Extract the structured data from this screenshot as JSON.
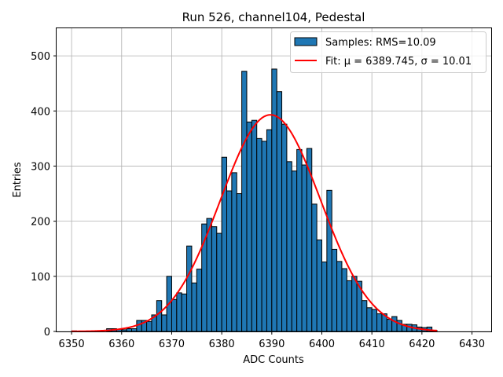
{
  "chart_data": {
    "type": "bar",
    "title": "Run 526, channel104, Pedestal",
    "xlabel": "ADC Counts",
    "ylabel": "Entries",
    "xlim": [
      6347,
      6434
    ],
    "ylim": [
      0,
      550
    ],
    "xticks": [
      6350,
      6360,
      6370,
      6380,
      6390,
      6400,
      6410,
      6420,
      6430
    ],
    "yticks": [
      0,
      100,
      200,
      300,
      400,
      500
    ],
    "grid": true,
    "legend_position": "top-right",
    "bin_width": 1,
    "colors": {
      "bar_fill": "#1f77b4",
      "bar_edge": "#000000",
      "fit_line": "#ff0000"
    },
    "series": [
      {
        "name": "Samples: RMS=10.09",
        "kind": "histogram",
        "bin_start": [
          6350,
          6351,
          6352,
          6353,
          6354,
          6355,
          6356,
          6357,
          6358,
          6359,
          6360,
          6361,
          6362,
          6363,
          6364,
          6365,
          6366,
          6367,
          6368,
          6369,
          6370,
          6371,
          6372,
          6373,
          6374,
          6375,
          6376,
          6377,
          6378,
          6379,
          6380,
          6381,
          6382,
          6383,
          6384,
          6385,
          6386,
          6387,
          6388,
          6389,
          6390,
          6391,
          6392,
          6393,
          6394,
          6395,
          6396,
          6397,
          6398,
          6399,
          6400,
          6401,
          6402,
          6403,
          6404,
          6405,
          6406,
          6407,
          6408,
          6409,
          6410,
          6411,
          6412,
          6413,
          6414,
          6415,
          6416,
          6417,
          6418,
          6419,
          6420,
          6421,
          6422
        ],
        "values": [
          1,
          0,
          0,
          0,
          0,
          0,
          0,
          5,
          5,
          4,
          3,
          5,
          5,
          20,
          20,
          18,
          30,
          56,
          30,
          100,
          58,
          70,
          68,
          155,
          88,
          113,
          195,
          205,
          190,
          178,
          316,
          255,
          288,
          250,
          472,
          380,
          383,
          350,
          345,
          366,
          476,
          435,
          376,
          308,
          291,
          330,
          302,
          332,
          231,
          166,
          126,
          256,
          149,
          127,
          114,
          92,
          100,
          91,
          56,
          43,
          40,
          32,
          32,
          22,
          27,
          20,
          13,
          13,
          12,
          8,
          7,
          8,
          2
        ]
      },
      {
        "name": "Fit: μ = 6389.745, σ = 10.01",
        "kind": "fit",
        "x_range": [
          6350,
          6423
        ],
        "mu": 6389.745,
        "sigma": 10.01,
        "amplitude": 393
      }
    ]
  }
}
